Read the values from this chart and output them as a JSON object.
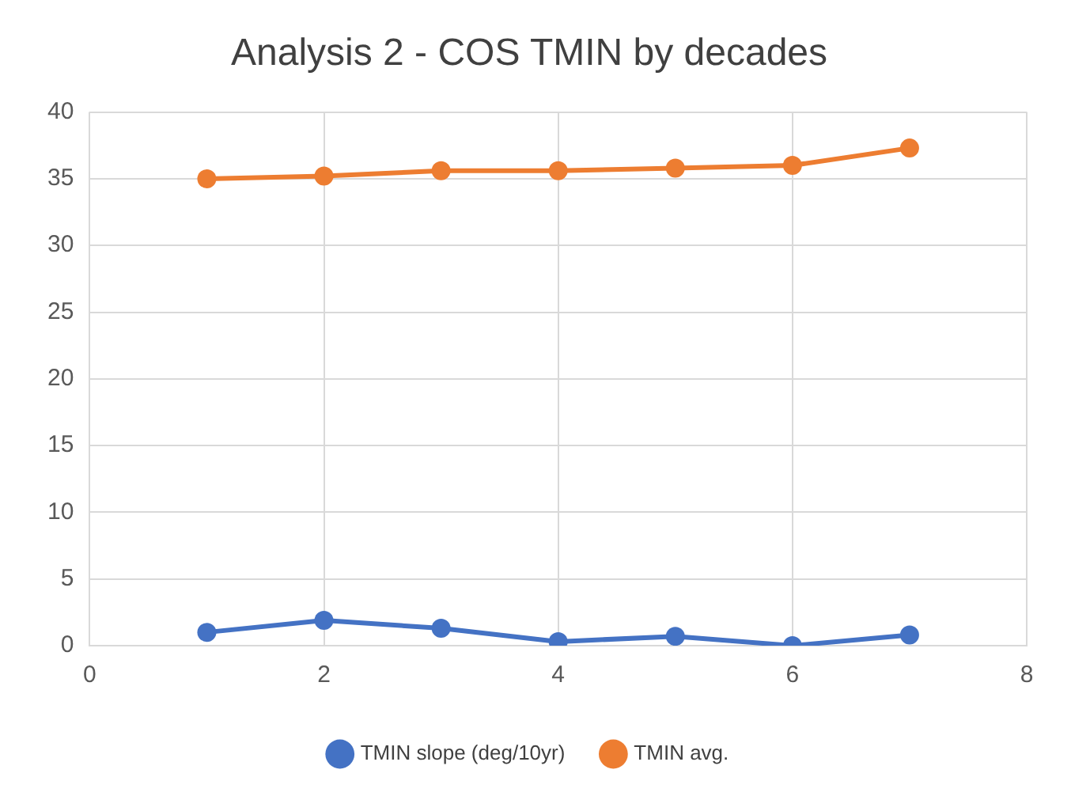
{
  "chart_data": {
    "type": "line",
    "title": "Analysis 2 - COS TMIN by decades",
    "x": [
      1,
      2,
      3,
      4,
      5,
      6,
      7
    ],
    "series": [
      {
        "name": "TMIN slope (deg/10yr)",
        "color": "#4472c4",
        "values": [
          1.0,
          1.9,
          1.3,
          0.3,
          0.7,
          0.0,
          0.8
        ]
      },
      {
        "name": "TMIN avg.",
        "color": "#ed7d31",
        "values": [
          35.0,
          35.2,
          35.6,
          35.6,
          35.8,
          36.0,
          37.3
        ]
      }
    ],
    "xlim": [
      0,
      8
    ],
    "xticks": [
      0,
      2,
      4,
      6,
      8
    ],
    "ylim": [
      0,
      40
    ],
    "yticks": [
      0,
      5,
      10,
      15,
      20,
      25,
      30,
      35,
      40
    ],
    "grid": true,
    "legend": "bottom",
    "marker": "circle",
    "line_style": "solid"
  }
}
